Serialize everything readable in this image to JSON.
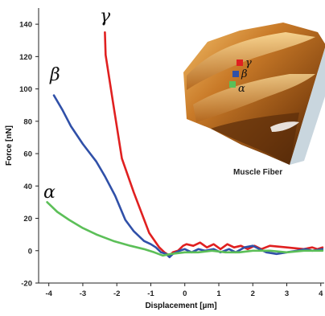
{
  "chart_data": {
    "type": "line",
    "xlabel": "Displacement [µm]",
    "ylabel": "Force [nN]",
    "xlim": [
      -4.3,
      4.1
    ],
    "ylim": [
      -20,
      150
    ],
    "xticks": [
      -4,
      -3,
      -2,
      -1,
      0,
      1,
      2,
      3,
      4
    ],
    "yticks": [
      -20,
      0,
      20,
      40,
      60,
      80,
      100,
      120,
      140
    ],
    "grid": false,
    "series": [
      {
        "name": "γ",
        "color": "#e02020",
        "points": [
          [
            -2.35,
            135
          ],
          [
            -2.33,
            121
          ],
          [
            -2.1,
            90
          ],
          [
            -1.85,
            57
          ],
          [
            -1.5,
            36
          ],
          [
            -1.05,
            11
          ],
          [
            -0.75,
            2
          ],
          [
            -0.6,
            -1
          ],
          [
            -0.45,
            -3
          ],
          [
            -0.35,
            -1
          ],
          [
            -0.2,
            0
          ],
          [
            -0.05,
            3
          ],
          [
            0.05,
            4
          ],
          [
            0.25,
            3
          ],
          [
            0.45,
            5
          ],
          [
            0.65,
            2
          ],
          [
            0.85,
            4
          ],
          [
            1.05,
            1
          ],
          [
            1.25,
            4
          ],
          [
            1.45,
            2
          ],
          [
            1.65,
            3
          ],
          [
            1.85,
            1
          ],
          [
            2.05,
            3
          ],
          [
            2.25,
            1
          ],
          [
            2.5,
            3
          ],
          [
            3.0,
            2
          ],
          [
            3.5,
            1
          ],
          [
            3.75,
            2
          ],
          [
            3.9,
            1
          ],
          [
            4.05,
            2
          ]
        ]
      },
      {
        "name": "β",
        "color": "#3050a8",
        "points": [
          [
            -3.85,
            96
          ],
          [
            -3.6,
            87
          ],
          [
            -3.35,
            77
          ],
          [
            -3.0,
            66
          ],
          [
            -2.6,
            55
          ],
          [
            -2.35,
            46
          ],
          [
            -2.05,
            34
          ],
          [
            -1.75,
            19
          ],
          [
            -1.5,
            12
          ],
          [
            -1.2,
            6
          ],
          [
            -1.0,
            4
          ],
          [
            -0.85,
            2
          ],
          [
            -0.7,
            -1
          ],
          [
            -0.55,
            -2
          ],
          [
            -0.45,
            -4
          ],
          [
            -0.35,
            -2
          ],
          [
            -0.15,
            0
          ],
          [
            0.0,
            1
          ],
          [
            0.2,
            -1
          ],
          [
            0.4,
            1
          ],
          [
            0.6,
            0
          ],
          [
            0.85,
            1
          ],
          [
            1.05,
            -1
          ],
          [
            1.3,
            1
          ],
          [
            1.5,
            -1
          ],
          [
            1.75,
            2
          ],
          [
            2.0,
            3
          ],
          [
            2.2,
            1
          ],
          [
            2.4,
            -1
          ],
          [
            2.7,
            -2
          ],
          [
            3.0,
            -1
          ],
          [
            3.3,
            0
          ],
          [
            3.55,
            1
          ],
          [
            3.75,
            0
          ],
          [
            4.05,
            1
          ]
        ]
      },
      {
        "name": "α",
        "color": "#5cbf58",
        "points": [
          [
            -4.05,
            30
          ],
          [
            -3.75,
            24
          ],
          [
            -3.4,
            19
          ],
          [
            -3.0,
            14
          ],
          [
            -2.6,
            10
          ],
          [
            -2.1,
            6
          ],
          [
            -1.6,
            3
          ],
          [
            -1.2,
            1
          ],
          [
            -0.9,
            -1
          ],
          [
            -0.65,
            -3
          ],
          [
            -0.4,
            -2
          ],
          [
            0.0,
            -1
          ],
          [
            0.4,
            -1
          ],
          [
            0.8,
            0
          ],
          [
            1.2,
            -1
          ],
          [
            1.6,
            -1
          ],
          [
            2.0,
            0
          ],
          [
            2.5,
            0
          ],
          [
            3.0,
            -1
          ],
          [
            3.5,
            0
          ],
          [
            4.05,
            0
          ]
        ]
      }
    ]
  },
  "inset": {
    "caption": "Muscle Fiber",
    "legend": [
      {
        "label": "γ",
        "color": "#e02020"
      },
      {
        "label": "β",
        "color": "#3050a8"
      },
      {
        "label": "α",
        "color": "#5cbf58"
      }
    ]
  }
}
